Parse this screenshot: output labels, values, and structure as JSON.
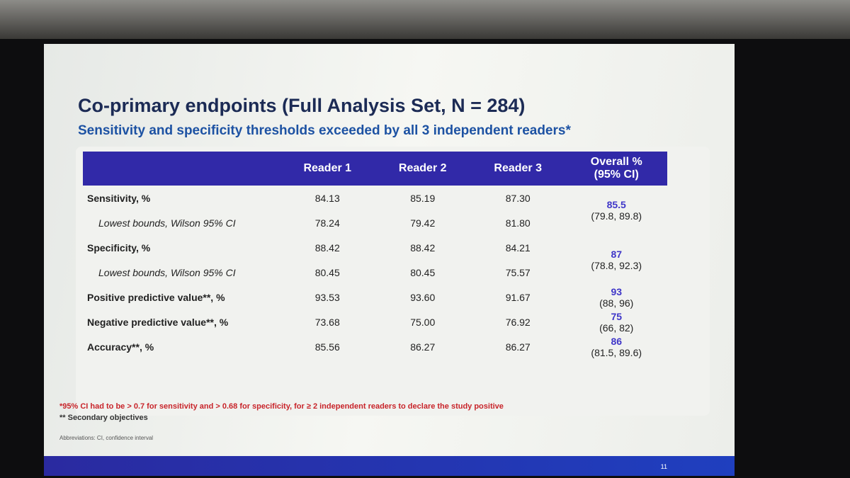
{
  "slide": {
    "title": "Co-primary endpoints (Full Analysis Set, N = 284)",
    "subtitle": "Sensitivity and specificity thresholds exceeded by all 3 independent readers*",
    "table": {
      "reader_columns": [
        "Reader 1",
        "Reader 2",
        "Reader 3"
      ],
      "overall_header": [
        "Overall %",
        "(95% CI)"
      ],
      "groups": [
        {
          "rows": [
            {
              "label": "Sensitivity, %",
              "italic": false,
              "values": [
                "84.13",
                "85.19",
                "87.30"
              ]
            },
            {
              "label": "Lowest bounds, Wilson 95% CI",
              "italic": true,
              "values": [
                "78.24",
                "79.42",
                "81.80"
              ]
            }
          ],
          "overall": {
            "estimate": "85.5",
            "ci": "(79.8, 89.8)"
          }
        },
        {
          "rows": [
            {
              "label": "Specificity, %",
              "italic": false,
              "values": [
                "88.42",
                "88.42",
                "84.21"
              ]
            },
            {
              "label": "Lowest bounds, Wilson 95% CI",
              "italic": true,
              "values": [
                "80.45",
                "80.45",
                "75.57"
              ]
            }
          ],
          "overall": {
            "estimate": "87",
            "ci": "(78.8, 92.3)"
          }
        },
        {
          "rows": [
            {
              "label": "Positive predictive value**, %",
              "italic": false,
              "values": [
                "93.53",
                "93.60",
                "91.67"
              ]
            }
          ],
          "overall": {
            "estimate": "93",
            "ci": "(88, 96)"
          }
        },
        {
          "rows": [
            {
              "label": "Negative predictive value**, %",
              "italic": false,
              "values": [
                "73.68",
                "75.00",
                "76.92"
              ]
            }
          ],
          "overall": {
            "estimate": "75",
            "ci": "(66, 82)"
          }
        },
        {
          "rows": [
            {
              "label": "Accuracy**, %",
              "italic": false,
              "values": [
                "85.56",
                "86.27",
                "86.27"
              ]
            }
          ],
          "overall": {
            "estimate": "86",
            "ci": "(81.5, 89.6)"
          }
        }
      ]
    },
    "footnotes": [
      "*95% CI had to be > 0.7 for sensitivity and > 0.68 for specificity, for ≥ 2 independent readers to declare the study positive",
      "** Secondary objectives"
    ],
    "abbreviations": "Abbreviations: CI, confidence interval",
    "page_number": "11"
  }
}
